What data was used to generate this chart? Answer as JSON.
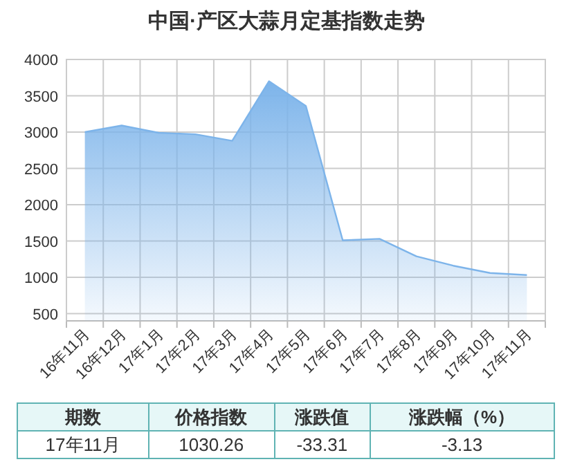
{
  "chart_data": {
    "type": "area",
    "title": "中国·产区大蒜月定基指数走势",
    "categories": [
      "16年11月",
      "16年12月",
      "17年1月",
      "17年2月",
      "17年3月",
      "17年4月",
      "17年5月",
      "17年6月",
      "17年7月",
      "17年8月",
      "17年9月",
      "17年10月",
      "17年11月"
    ],
    "series": [
      {
        "color": "#7db4ea",
        "values": [
          3000,
          3090,
          2990,
          2970,
          2880,
          3700,
          3360,
          1510,
          1530,
          1290,
          1160,
          1060,
          1030.26
        ]
      }
    ],
    "ylim": [
      400,
      4000
    ],
    "yticks": [
      500,
      1000,
      1500,
      2000,
      2500,
      3000,
      3500,
      4000
    ],
    "grid": true,
    "annotations": [
      "期数",
      "价格指数",
      "涨跌值",
      "涨跌幅（%）",
      "17年11月",
      "1030.26",
      "-33.31",
      "-3.13"
    ]
  }
}
